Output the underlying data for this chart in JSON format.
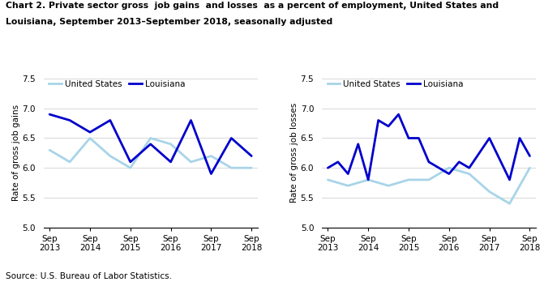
{
  "title_line1": "Chart 2. Private sector gross  job gains  and losses  as a percent of employment, United States and",
  "title_line2": "Louisiana, September 2013–September 2018, seasonally adjusted",
  "source": "Source: U.S. Bureau of Labor Statistics.",
  "left_ylabel": "Rate of gross job gains",
  "right_ylabel": "Rate of gross job losses",
  "ylim": [
    5.0,
    7.5
  ],
  "yticks": [
    5.0,
    5.5,
    6.0,
    6.5,
    7.0,
    7.5
  ],
  "us_color": "#a8d4e8",
  "la_color": "#0000cc",
  "us_label": "United States",
  "la_label": "Louisiana",
  "xtick_pos": [
    0,
    2,
    4,
    6,
    8,
    10
  ],
  "xtick_labels": [
    "Sep\n2013",
    "Sep\n2014",
    "Sep\n2015",
    "Sep\n2016",
    "Sep\n2017",
    "Sep\n2018"
  ],
  "xlim": [
    -0.3,
    10.3
  ],
  "gains_x": [
    0,
    1,
    2,
    3,
    4,
    5,
    6,
    7,
    8,
    9,
    10
  ],
  "gains_us": [
    6.3,
    6.1,
    6.5,
    6.2,
    6.0,
    6.5,
    6.4,
    6.1,
    6.2,
    6.0,
    6.0
  ],
  "gains_la": [
    6.9,
    6.8,
    6.6,
    6.8,
    6.1,
    6.4,
    6.1,
    6.8,
    5.9,
    6.5,
    6.2
  ],
  "losses_x": [
    0,
    1,
    2,
    3,
    4,
    5,
    6,
    7,
    8,
    9,
    10
  ],
  "losses_us": [
    5.8,
    5.7,
    5.8,
    5.7,
    5.8,
    5.8,
    6.0,
    5.9,
    5.6,
    5.4,
    6.0
  ],
  "losses_la_x": [
    0,
    0.5,
    1.0,
    1.5,
    2.0,
    2.5,
    3.0,
    3.5,
    4.0,
    4.5,
    5.0,
    5.5,
    6.0,
    6.5,
    7.0,
    8.0,
    9.0,
    9.5,
    10.0
  ],
  "losses_la": [
    6.0,
    6.1,
    5.9,
    6.4,
    5.8,
    6.8,
    6.7,
    6.9,
    6.5,
    6.5,
    6.1,
    6.0,
    5.9,
    6.1,
    6.0,
    6.5,
    5.8,
    6.5,
    6.2
  ]
}
